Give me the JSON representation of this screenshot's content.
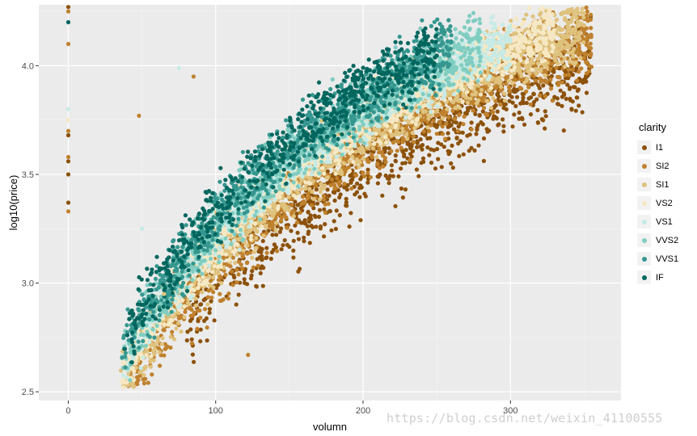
{
  "chart_data": {
    "type": "scatter",
    "title": "",
    "xlabel": "volumn",
    "ylabel": "log10(price)",
    "xlim": [
      -20,
      375
    ],
    "ylim": [
      2.46,
      4.28
    ],
    "x_ticks": [
      0,
      100,
      200,
      300
    ],
    "x_tick_labels": [
      "0",
      "100",
      "200",
      "300"
    ],
    "y_ticks": [
      2.5,
      3.0,
      3.5,
      4.0
    ],
    "y_tick_labels": [
      "2.5",
      "3.0",
      "3.5",
      "4.0"
    ],
    "grid": true,
    "legend_position": "right",
    "legend_title": "clarity",
    "series": [
      {
        "name": "I1",
        "color": "#8c510a",
        "offset": -0.2,
        "spread": 0.1,
        "x_range": [
          80,
          355
        ],
        "sample_points": [
          [
            100,
            3.02
          ],
          [
            150,
            3.28
          ],
          [
            200,
            3.55
          ],
          [
            250,
            3.78
          ],
          [
            300,
            3.92
          ],
          [
            340,
            3.8
          ]
        ]
      },
      {
        "name": "SI2",
        "color": "#bf812d",
        "offset": -0.08,
        "spread": 0.08,
        "x_range": [
          38,
          355
        ],
        "sample_points": [
          [
            50,
            2.7
          ],
          [
            100,
            3.2
          ],
          [
            150,
            3.45
          ],
          [
            200,
            3.7
          ],
          [
            250,
            3.9
          ],
          [
            300,
            4.08
          ],
          [
            350,
            4.15
          ]
        ]
      },
      {
        "name": "SI1",
        "color": "#dfc27d",
        "offset": -0.03,
        "spread": 0.07,
        "x_range": [
          35,
          350
        ],
        "sample_points": [
          [
            50,
            2.75
          ],
          [
            100,
            3.28
          ],
          [
            150,
            3.52
          ],
          [
            200,
            3.78
          ],
          [
            250,
            3.98
          ],
          [
            300,
            4.12
          ]
        ]
      },
      {
        "name": "VS2",
        "color": "#f6e8c3",
        "offset": 0.01,
        "spread": 0.06,
        "x_range": [
          36,
          330
        ],
        "sample_points": [
          [
            50,
            2.82
          ],
          [
            100,
            3.33
          ],
          [
            150,
            3.58
          ],
          [
            200,
            3.85
          ],
          [
            250,
            4.05
          ],
          [
            300,
            4.2
          ]
        ]
      },
      {
        "name": "VS1",
        "color": "#c7eae5",
        "offset": 0.05,
        "spread": 0.06,
        "x_range": [
          36,
          300
        ],
        "sample_points": [
          [
            50,
            2.88
          ],
          [
            100,
            3.4
          ],
          [
            150,
            3.68
          ],
          [
            200,
            3.95
          ],
          [
            250,
            4.15
          ]
        ]
      },
      {
        "name": "VVS2",
        "color": "#80cdc1",
        "offset": 0.09,
        "spread": 0.07,
        "x_range": [
          36,
          280
        ],
        "sample_points": [
          [
            50,
            2.95
          ],
          [
            100,
            3.45
          ],
          [
            150,
            3.78
          ],
          [
            200,
            4.05
          ],
          [
            250,
            4.2
          ]
        ]
      },
      {
        "name": "VVS1",
        "color": "#35978f",
        "offset": 0.13,
        "spread": 0.07,
        "x_range": [
          36,
          260
        ],
        "sample_points": [
          [
            50,
            3.0
          ],
          [
            100,
            3.5
          ],
          [
            150,
            3.88
          ],
          [
            200,
            4.12
          ]
        ]
      },
      {
        "name": "IF",
        "color": "#01665e",
        "offset": 0.16,
        "spread": 0.07,
        "x_range": [
          38,
          250
        ],
        "sample_points": [
          [
            60,
            3.1
          ],
          [
            100,
            3.62
          ],
          [
            150,
            3.98
          ],
          [
            200,
            4.2
          ]
        ]
      }
    ],
    "zero_volume_points": [
      [
        0,
        4.27,
        "I1"
      ],
      [
        0,
        4.25,
        "SI2"
      ],
      [
        0,
        4.2,
        "IF"
      ],
      [
        0,
        4.1,
        "SI2"
      ],
      [
        0,
        3.8,
        "VS1"
      ],
      [
        0,
        3.75,
        "VS2"
      ],
      [
        0,
        3.7,
        "SI2"
      ],
      [
        0,
        3.68,
        "I1"
      ],
      [
        0,
        3.58,
        "SI2"
      ],
      [
        0,
        3.56,
        "I1"
      ],
      [
        0,
        3.5,
        "I1"
      ],
      [
        0,
        3.37,
        "I1"
      ],
      [
        0,
        3.33,
        "SI2"
      ]
    ],
    "outliers": [
      [
        48,
        3.77,
        "SI2"
      ],
      [
        75,
        3.99,
        "VS1"
      ],
      [
        85,
        3.95,
        "SI2"
      ],
      [
        122,
        2.67,
        "SI2"
      ],
      [
        65,
        2.95,
        "SI1"
      ],
      [
        50,
        3.25,
        "VS1"
      ]
    ]
  },
  "watermark": "https://blog.csdn.net/weixin_41100555"
}
